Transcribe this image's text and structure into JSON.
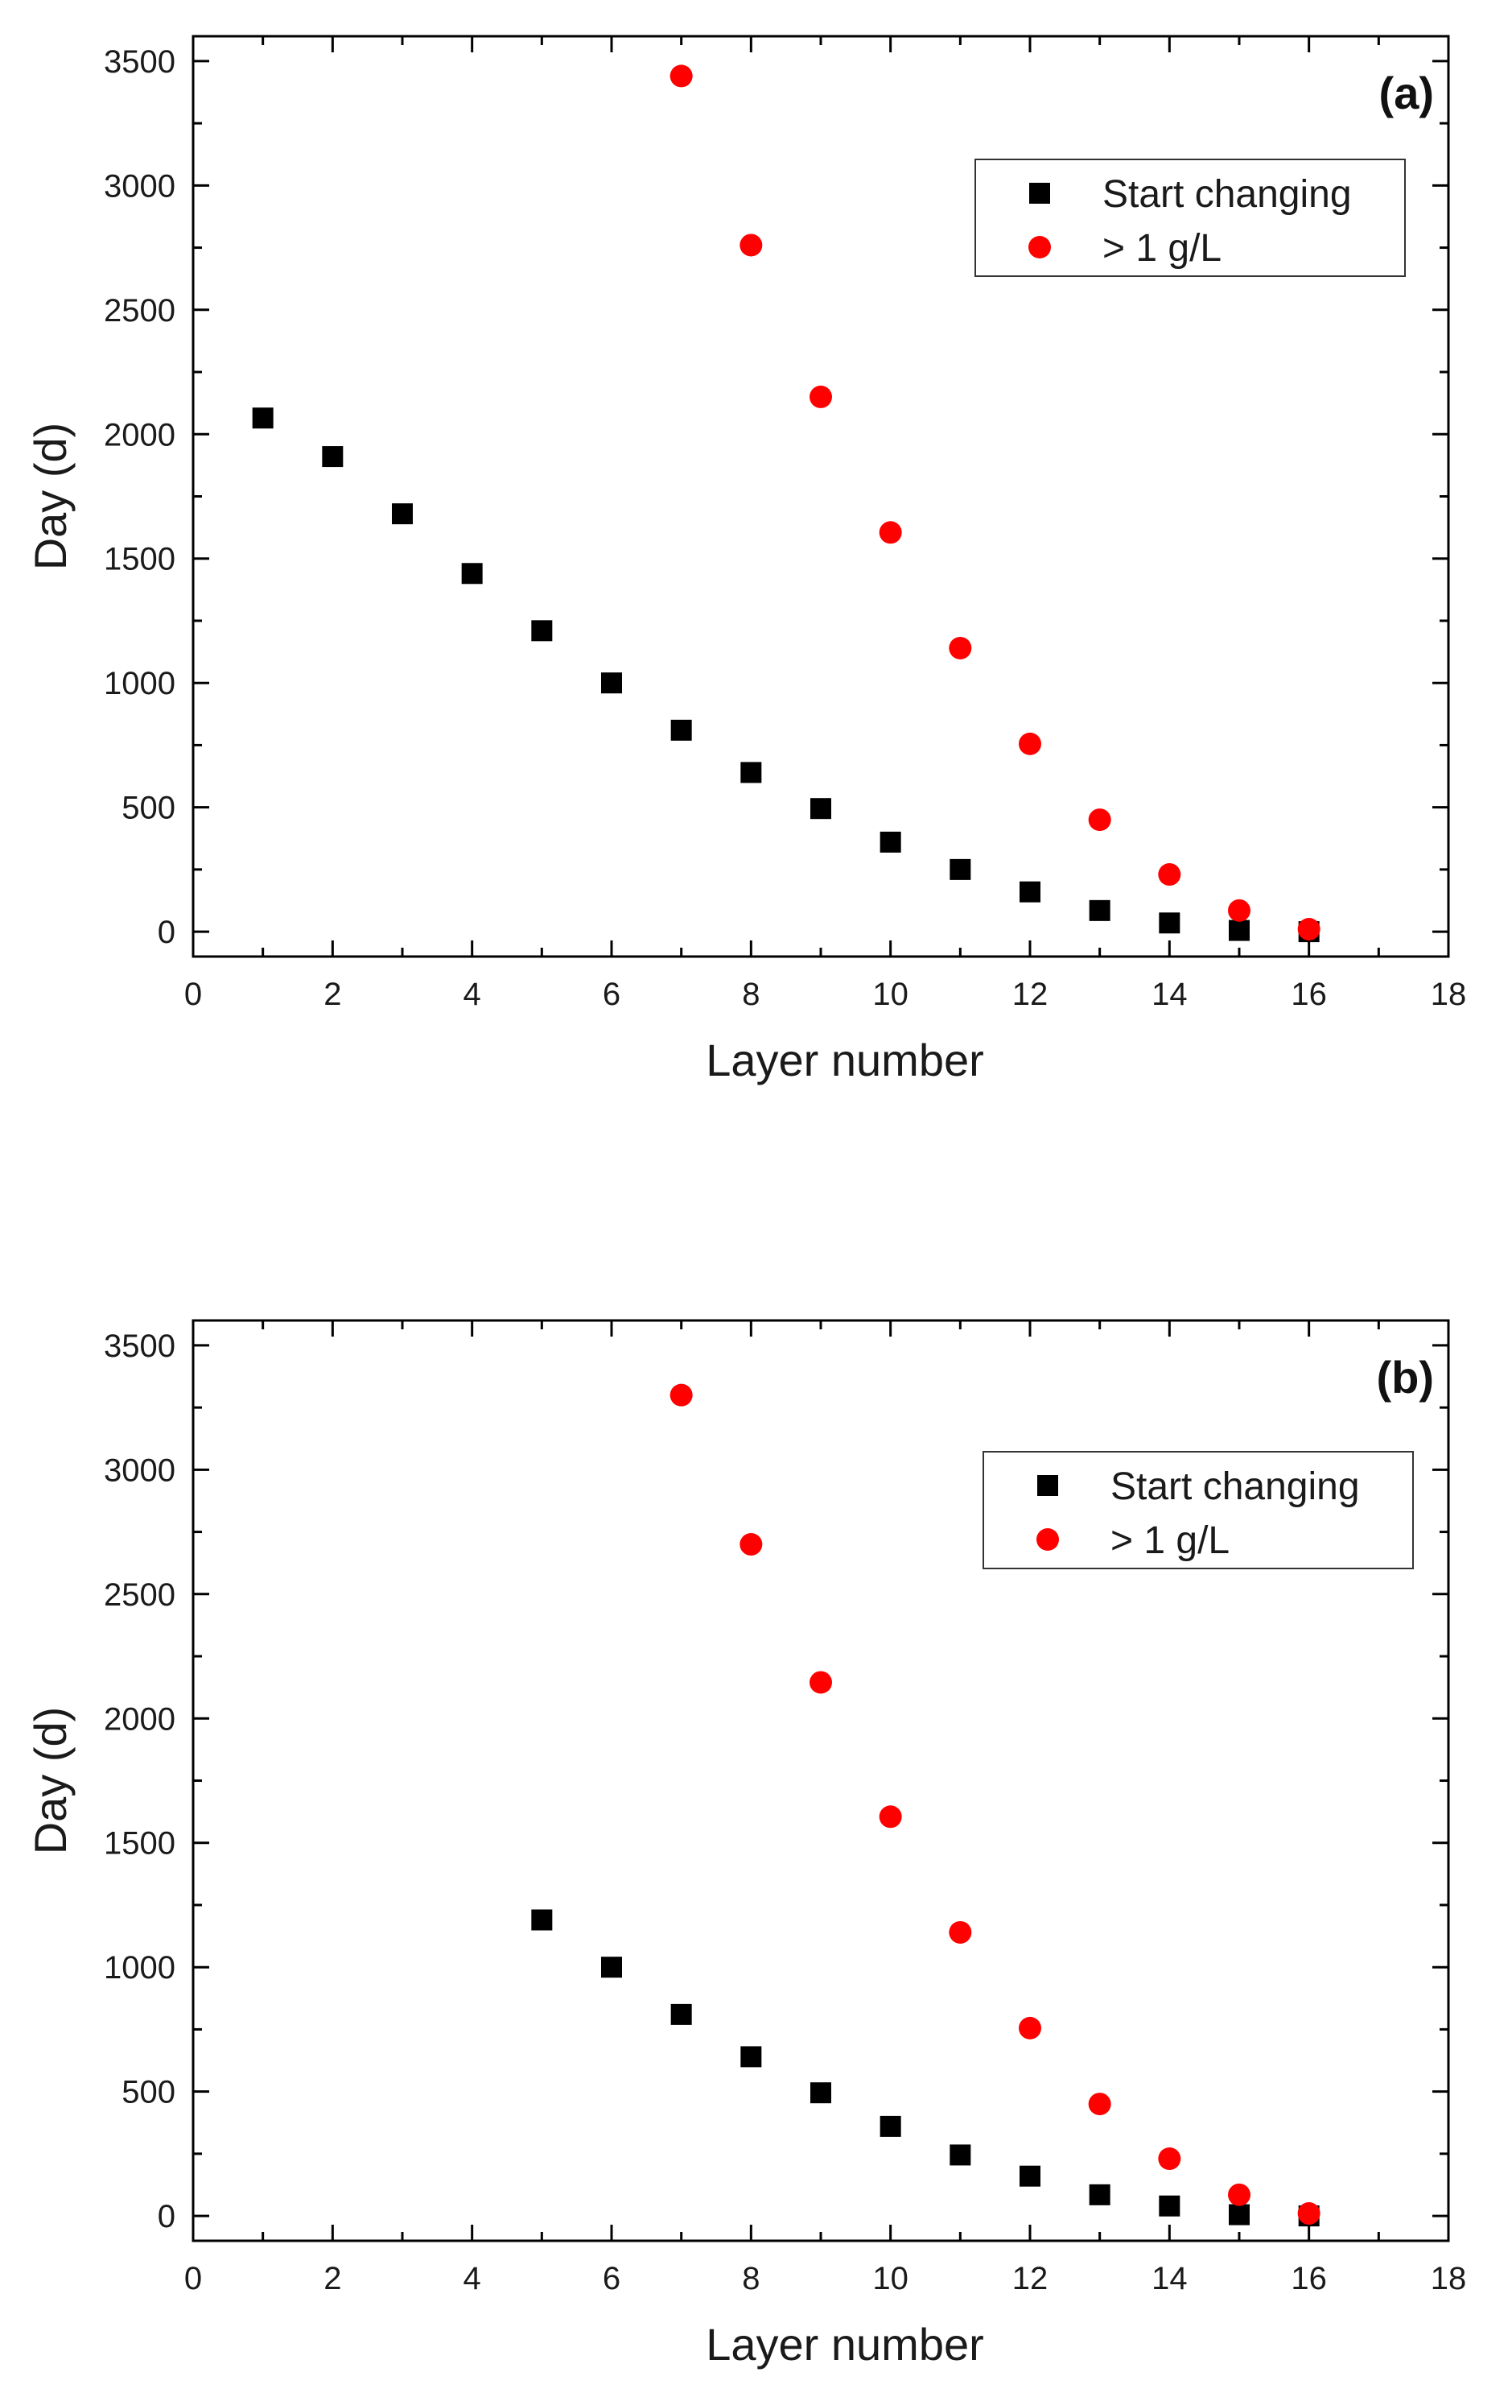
{
  "chart_data": [
    {
      "type": "scatter",
      "panel_label": "(a)",
      "xlabel": "Layer number",
      "ylabel": "Day (d)",
      "xlim": [
        0,
        18
      ],
      "ylim": [
        -100,
        3600
      ],
      "xticks": [
        0,
        2,
        4,
        6,
        8,
        10,
        12,
        14,
        16,
        18
      ],
      "yticks": [
        0,
        500,
        1000,
        1500,
        2000,
        2500,
        3000,
        3500
      ],
      "grid": false,
      "legend_position": "top-right",
      "series": [
        {
          "name": "Start changing",
          "marker": "square",
          "color": "#000000",
          "x": [
            1,
            2,
            3,
            4,
            5,
            6,
            7,
            8,
            9,
            10,
            11,
            12,
            13,
            14,
            15,
            16
          ],
          "y": [
            2065,
            1910,
            1680,
            1440,
            1210,
            1000,
            810,
            640,
            495,
            360,
            250,
            160,
            85,
            35,
            5,
            0
          ]
        },
        {
          "name": "> 1 g/L",
          "marker": "circle",
          "color": "#ff0000",
          "x": [
            7,
            8,
            9,
            10,
            11,
            12,
            13,
            14,
            15,
            16
          ],
          "y": [
            3440,
            2760,
            2150,
            1605,
            1140,
            755,
            450,
            230,
            85,
            10
          ]
        }
      ]
    },
    {
      "type": "scatter",
      "panel_label": "(b)",
      "xlabel": "Layer number",
      "ylabel": "Day (d)",
      "xlim": [
        0,
        18
      ],
      "ylim": [
        -100,
        3600
      ],
      "xticks": [
        0,
        2,
        4,
        6,
        8,
        10,
        12,
        14,
        16,
        18
      ],
      "yticks": [
        0,
        500,
        1000,
        1500,
        2000,
        2500,
        3000,
        3500
      ],
      "grid": false,
      "legend_position": "top-right",
      "series": [
        {
          "name": "Start changing",
          "marker": "square",
          "color": "#000000",
          "x": [
            5,
            6,
            7,
            8,
            9,
            10,
            11,
            12,
            13,
            14,
            15,
            16
          ],
          "y": [
            1190,
            1000,
            810,
            640,
            495,
            360,
            245,
            160,
            85,
            40,
            5,
            0
          ]
        },
        {
          "name": "> 1 g/L",
          "marker": "circle",
          "color": "#ff0000",
          "x": [
            7,
            8,
            9,
            10,
            11,
            12,
            13,
            14,
            15,
            16
          ],
          "y": [
            3300,
            2700,
            2145,
            1605,
            1140,
            755,
            450,
            230,
            85,
            10
          ]
        }
      ]
    }
  ]
}
